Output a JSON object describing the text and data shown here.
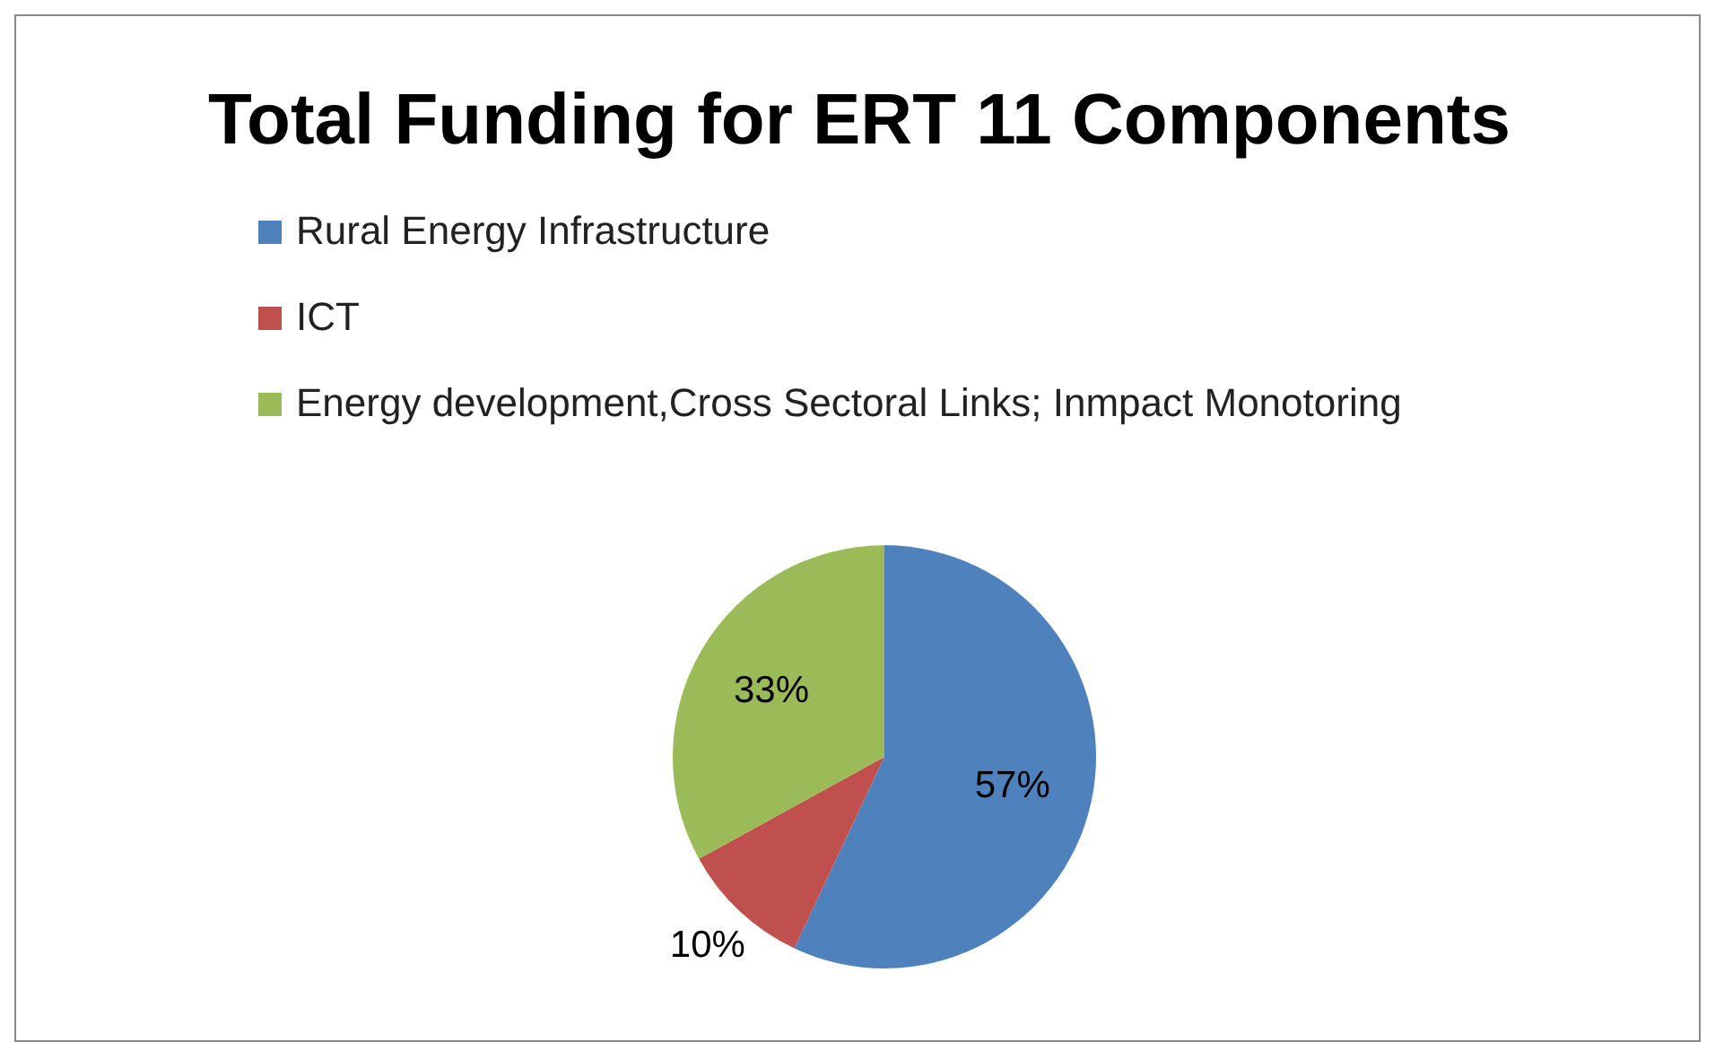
{
  "chart_data": {
    "type": "pie",
    "title": "Total Funding for ERT 11 Components",
    "categories": [
      "Rural Energy Infrastructure",
      "ICT",
      "Energy development,Cross Sectoral Links; Inmpact Monotoring"
    ],
    "values": [
      57,
      10,
      33
    ],
    "colors": [
      "#4f81bd",
      "#c0504d",
      "#9bbb59"
    ],
    "value_labels": [
      "57%",
      "10%",
      "33%"
    ],
    "legend": "top left"
  }
}
